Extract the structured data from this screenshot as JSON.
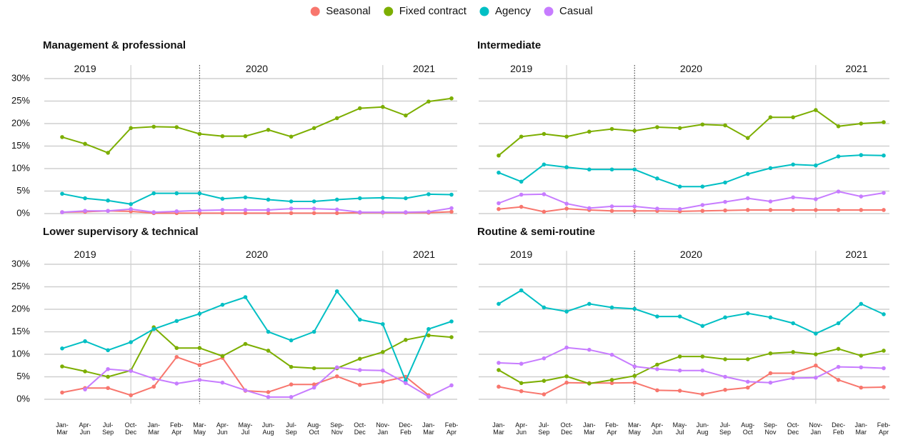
{
  "chart_data": [
    {
      "type": "line",
      "title": "Management & professional",
      "year_labels": [
        "2019",
        "2020",
        "2021"
      ],
      "ylim": [
        -1,
        33
      ],
      "yticks": [
        {
          "value": 0,
          "label": "0%"
        },
        {
          "value": 5,
          "label": "5%"
        },
        {
          "value": 10,
          "label": "10%"
        },
        {
          "value": 15,
          "label": "15%"
        },
        {
          "value": 20,
          "label": "20%"
        },
        {
          "value": 25,
          "label": "25%"
        },
        {
          "value": 30,
          "label": "30%"
        }
      ],
      "grid": true,
      "series": [
        {
          "name": "Seasonal",
          "color": "#F8766D",
          "values": [
            0.3,
            0.4,
            0.6,
            0.5,
            0.1,
            0.1,
            0.1,
            0.1,
            0.1,
            0.1,
            0.1,
            0.1,
            0.1,
            0.2,
            0.2,
            0.2,
            0.2,
            0.4
          ]
        },
        {
          "name": "Fixed contract",
          "color": "#7CAE00",
          "values": [
            17,
            15.5,
            13.5,
            19,
            19.3,
            19.2,
            17.7,
            17.2,
            17.2,
            18.6,
            17.1,
            19,
            21.2,
            23.4,
            23.7,
            21.8,
            24.9,
            25.6
          ]
        },
        {
          "name": "Agency",
          "color": "#00BFC4",
          "values": [
            4.4,
            3.4,
            2.9,
            2.1,
            4.5,
            4.5,
            4.5,
            3.3,
            3.6,
            3.1,
            2.7,
            2.7,
            3.1,
            3.4,
            3.5,
            3.4,
            4.3,
            4.2
          ]
        },
        {
          "name": "Casual",
          "color": "#C77CFF",
          "values": [
            0.3,
            0.6,
            0.6,
            1.0,
            0.3,
            0.5,
            0.7,
            0.8,
            0.8,
            0.8,
            1.1,
            1.1,
            0.9,
            0.3,
            0.3,
            0.3,
            0.4,
            1.2
          ]
        }
      ]
    },
    {
      "type": "line",
      "title": "Intermediate",
      "year_labels": [
        "2019",
        "2020",
        "2021"
      ],
      "ylim": [
        -1,
        33
      ],
      "yticks": [
        {
          "value": 0,
          "label": "0%"
        },
        {
          "value": 5,
          "label": "5%"
        },
        {
          "value": 10,
          "label": "10%"
        },
        {
          "value": 15,
          "label": "15%"
        },
        {
          "value": 20,
          "label": "20%"
        },
        {
          "value": 25,
          "label": "25%"
        },
        {
          "value": 30,
          "label": "30%"
        }
      ],
      "grid": true,
      "series": [
        {
          "name": "Seasonal",
          "color": "#F8766D",
          "values": [
            1.0,
            1.5,
            0.4,
            1.1,
            0.8,
            0.6,
            0.6,
            0.6,
            0.5,
            0.6,
            0.7,
            0.8,
            0.8,
            0.8,
            0.8,
            0.8,
            0.8,
            0.8
          ]
        },
        {
          "name": "Fixed contract",
          "color": "#7CAE00",
          "values": [
            12.9,
            17.1,
            17.7,
            17.1,
            18.2,
            18.8,
            18.4,
            19.2,
            19.0,
            19.8,
            19.6,
            16.8,
            21.4,
            21.4,
            23.0,
            19.4,
            20.0,
            20.3
          ]
        },
        {
          "name": "Agency",
          "color": "#00BFC4",
          "values": [
            9.1,
            7.1,
            10.9,
            10.3,
            9.8,
            9.8,
            9.8,
            7.8,
            6.0,
            6.0,
            6.9,
            8.8,
            10.1,
            10.9,
            10.7,
            12.7,
            13.0,
            12.9
          ]
        },
        {
          "name": "Casual",
          "color": "#C77CFF",
          "values": [
            2.3,
            4.2,
            4.3,
            2.2,
            1.2,
            1.6,
            1.6,
            1.1,
            1.0,
            1.9,
            2.6,
            3.4,
            2.7,
            3.6,
            3.2,
            4.9,
            3.8,
            4.6
          ]
        }
      ]
    },
    {
      "type": "line",
      "title": "Lower supervisory & technical",
      "year_labels": [
        "2019",
        "2020",
        "2021"
      ],
      "categories": [
        "Jan-\nMar",
        "Apr-\nJun",
        "Jul-\nSep",
        "Oct-\nDec",
        "Jan-\nMar",
        "Feb-\nApr",
        "Mar-\nMay",
        "Apr-\nJun",
        "May-\nJul",
        "Jun-\nAug",
        "Jul-\nSep",
        "Aug-\nOct",
        "Sep-\nNov",
        "Oct-\nDec",
        "Nov-\nJan",
        "Dec-\nFeb",
        "Jan-\nMar",
        "Feb-\nApr"
      ],
      "ylim": [
        -1,
        33
      ],
      "yticks": [
        {
          "value": 0,
          "label": "0%"
        },
        {
          "value": 5,
          "label": "5%"
        },
        {
          "value": 10,
          "label": "10%"
        },
        {
          "value": 15,
          "label": "15%"
        },
        {
          "value": 20,
          "label": "20%"
        },
        {
          "value": 25,
          "label": "25%"
        },
        {
          "value": 30,
          "label": "30%"
        }
      ],
      "grid": true,
      "series": [
        {
          "name": "Seasonal",
          "color": "#F8766D",
          "values": [
            1.5,
            2.5,
            2.5,
            0.9,
            2.8,
            9.4,
            7.6,
            9.2,
            1.9,
            1.6,
            3.3,
            3.3,
            5.1,
            3.2,
            3.9,
            5.0,
            0.9,
            null
          ]
        },
        {
          "name": "Fixed contract",
          "color": "#7CAE00",
          "values": [
            7.3,
            6.2,
            5.0,
            6.4,
            16.0,
            11.4,
            11.4,
            9.6,
            12.3,
            10.8,
            7.2,
            6.9,
            6.9,
            9.0,
            10.5,
            13.2,
            14.2,
            13.8
          ]
        },
        {
          "name": "Agency",
          "color": "#00BFC4",
          "values": [
            11.3,
            12.9,
            10.9,
            12.7,
            15.6,
            17.4,
            19.0,
            21.0,
            22.7,
            15.0,
            13.1,
            15.0,
            24.0,
            17.7,
            16.7,
            4.1,
            15.6,
            17.3
          ]
        },
        {
          "name": "Casual",
          "color": "#C77CFF",
          "values": [
            null,
            2.2,
            6.7,
            6.3,
            4.6,
            3.5,
            4.3,
            3.7,
            2.0,
            0.5,
            0.5,
            2.6,
            7.1,
            6.5,
            6.4,
            3.6,
            0.6,
            3.1
          ]
        }
      ]
    },
    {
      "type": "line",
      "title": "Routine & semi-routine",
      "year_labels": [
        "2019",
        "2020",
        "2021"
      ],
      "categories": [
        "Jan-\nMar",
        "Apr-\nJun",
        "Jul-\nSep",
        "Oct-\nDec",
        "Jan-\nMar",
        "Feb-\nApr",
        "Mar-\nMay",
        "Apr-\nJun",
        "May-\nJul",
        "Jun-\nAug",
        "Jul-\nSep",
        "Aug-\nOct",
        "Sep-\nNov",
        "Oct-\nDec",
        "Nov-\nJan",
        "Dec-\nFeb",
        "Jan-\nMar",
        "Feb-\nApr"
      ],
      "ylim": [
        -1,
        33
      ],
      "yticks": [
        {
          "value": 0,
          "label": "0%"
        },
        {
          "value": 5,
          "label": "5%"
        },
        {
          "value": 10,
          "label": "10%"
        },
        {
          "value": 15,
          "label": "15%"
        },
        {
          "value": 20,
          "label": "20%"
        },
        {
          "value": 25,
          "label": "25%"
        },
        {
          "value": 30,
          "label": "30%"
        }
      ],
      "grid": true,
      "series": [
        {
          "name": "Seasonal",
          "color": "#F8766D",
          "values": [
            2.8,
            1.8,
            1.1,
            3.7,
            3.6,
            3.6,
            3.7,
            2.0,
            1.9,
            1.1,
            2.1,
            2.6,
            5.8,
            5.8,
            7.5,
            4.3,
            2.6,
            2.7
          ]
        },
        {
          "name": "Fixed contract",
          "color": "#7CAE00",
          "values": [
            6.5,
            3.6,
            4.1,
            5.1,
            3.5,
            4.3,
            5.2,
            7.7,
            9.5,
            9.5,
            8.9,
            8.9,
            10.2,
            10.5,
            10.0,
            11.2,
            9.7,
            10.8
          ]
        },
        {
          "name": "Agency",
          "color": "#00BFC4",
          "values": [
            21.2,
            24.2,
            20.4,
            19.5,
            21.2,
            20.4,
            20.1,
            18.4,
            18.4,
            16.3,
            18.2,
            19.1,
            18.2,
            16.9,
            14.6,
            16.9,
            21.2,
            18.9
          ]
        },
        {
          "name": "Casual",
          "color": "#C77CFF",
          "values": [
            8.1,
            7.9,
            9.1,
            11.5,
            11.0,
            9.9,
            7.3,
            6.7,
            6.4,
            6.4,
            5.0,
            3.9,
            3.7,
            4.7,
            4.8,
            7.2,
            7.1,
            6.9
          ]
        }
      ]
    }
  ]
}
